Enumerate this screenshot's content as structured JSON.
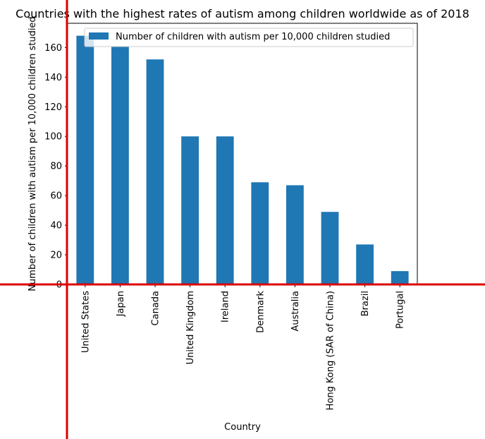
{
  "chart_data": {
    "type": "bar",
    "title": "Countries with the highest rates of autism among children worldwide as of 2018",
    "xlabel": "Country",
    "ylabel": "Number of children with autism per 10,000 children studied",
    "categories": [
      "United States",
      "Japan",
      "Canada",
      "United Kingdom",
      "Ireland",
      "Denmark",
      "Australia",
      "Hong Kong (SAR of China)",
      "Brazil",
      "Portugal"
    ],
    "series": [
      {
        "name": "Number of children with autism per 10,000 children studied",
        "values": [
          168,
          161,
          152,
          100,
          100,
          69,
          67,
          49,
          27,
          9
        ],
        "color": "#1f77b4"
      }
    ],
    "ylim": [
      0,
      176.4
    ],
    "yticks": [
      0,
      20,
      40,
      60,
      80,
      100,
      120,
      140,
      160
    ],
    "grid": false,
    "legend_position": "top-right",
    "overlay_line_color": "#dd0000"
  }
}
